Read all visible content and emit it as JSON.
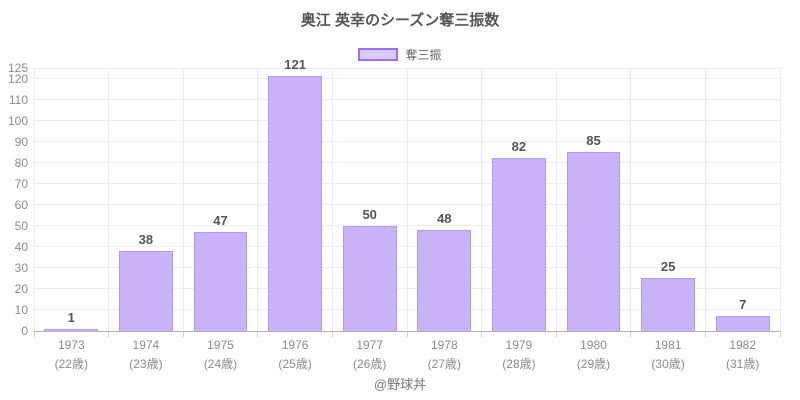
{
  "chart_data": {
    "type": "bar",
    "title": "奥江 英幸のシーズン奪三振数",
    "legend": [
      {
        "label": "奪三振"
      }
    ],
    "legend_position": "top",
    "grid": true,
    "categories": [
      {
        "year": "1973",
        "age": "(22歳)"
      },
      {
        "year": "1974",
        "age": "(23歳)"
      },
      {
        "year": "1975",
        "age": "(24歳)"
      },
      {
        "year": "1976",
        "age": "(25歳)"
      },
      {
        "year": "1977",
        "age": "(26歳)"
      },
      {
        "year": "1978",
        "age": "(27歳)"
      },
      {
        "year": "1979",
        "age": "(28歳)"
      },
      {
        "year": "1980",
        "age": "(29歳)"
      },
      {
        "year": "1981",
        "age": "(30歳)"
      },
      {
        "year": "1982",
        "age": "(31歳)"
      }
    ],
    "values": [
      1,
      38,
      47,
      121,
      50,
      48,
      82,
      85,
      25,
      7
    ],
    "xlabel": "",
    "ylabel": "",
    "ylim": [
      0,
      125
    ],
    "y_ticks": [
      0,
      10,
      20,
      30,
      40,
      50,
      60,
      70,
      80,
      90,
      100,
      110,
      120,
      125
    ]
  },
  "footer": {
    "credit": "@野球丼"
  },
  "colors": {
    "bar_fill": "#c9b2f8",
    "bar_border": "#b39af0",
    "legend_swatch_fill": "#d9cbf7",
    "legend_swatch_border": "#9a6ff0",
    "gridline": "#ececec",
    "axis_line": "#b0b0b0",
    "tick_mark": "#cfcfcf",
    "title_text": "#555555",
    "value_label_text": "#555555",
    "tick_label_text": "#8a8a8a",
    "footer_text": "#777777"
  }
}
